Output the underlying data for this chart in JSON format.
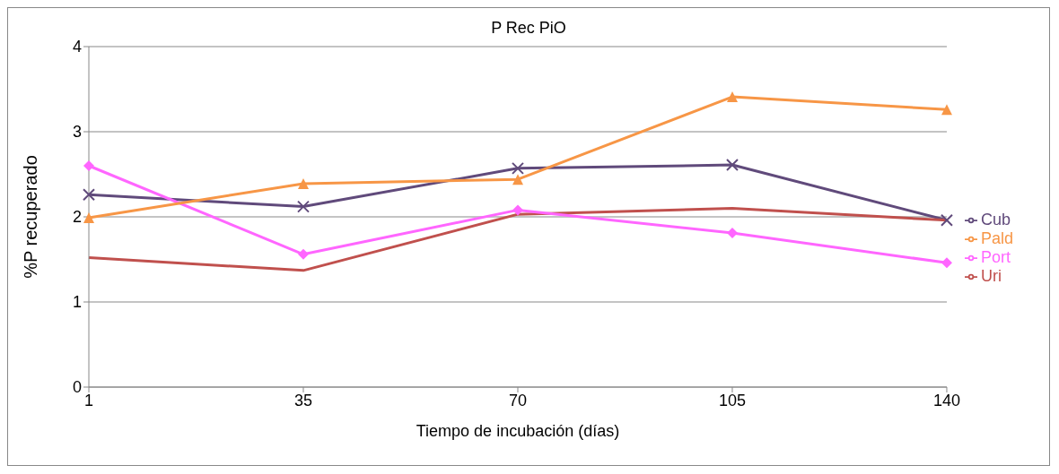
{
  "chart_data": {
    "type": "line",
    "title": "P Rec PiO",
    "xlabel": "Tiempo de incubación (días)",
    "ylabel": "%P recuperado",
    "categories": [
      "1",
      "35",
      "70",
      "105",
      "140"
    ],
    "series": [
      {
        "name": "Cub",
        "color": "#604a7b",
        "marker": "cross",
        "values": [
          2.26,
          2.12,
          2.57,
          2.61,
          1.96
        ]
      },
      {
        "name": "Uri",
        "color": "#c0504d",
        "marker": "none",
        "values": [
          1.52,
          1.37,
          2.03,
          2.1,
          1.96
        ]
      },
      {
        "name": "Port",
        "color": "#ff66ff",
        "marker": "diamond",
        "values": [
          2.6,
          1.56,
          2.08,
          1.81,
          1.46
        ]
      },
      {
        "name": "Pald",
        "color": "#f79646",
        "marker": "triangle",
        "values": [
          1.99,
          2.39,
          2.44,
          3.41,
          3.26
        ]
      }
    ],
    "ylim": [
      0,
      4
    ],
    "yticks": [
      0,
      1,
      2,
      3,
      4
    ],
    "grid": "y",
    "legend": "right"
  }
}
